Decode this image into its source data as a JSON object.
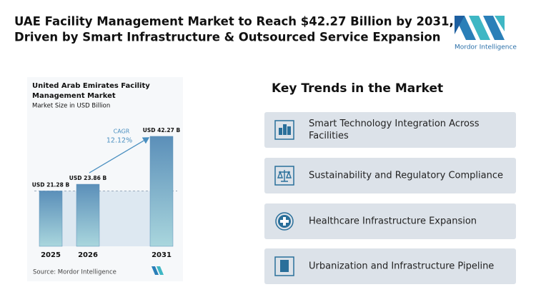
{
  "header": {
    "title": [
      "UAE Facility Management Market to Reach $42.27 Billion by 2031,",
      "Driven by Smart Infrastructure & Outsourced Service Expansion"
    ]
  },
  "logo": {
    "text": "Mordor Intelligence"
  },
  "chart_data": {
    "type": "bar",
    "title": [
      "United Arab Emirates Facility",
      "Management Market"
    ],
    "subtitle": "Market Size in USD Billion",
    "categories": [
      "2025",
      "2026",
      "2031"
    ],
    "values": [
      21.28,
      23.86,
      42.27
    ],
    "value_labels": [
      "USD 21.28 B",
      "USD 23.86 B",
      "USD 42.27 B"
    ],
    "annotation": {
      "label": "CAGR",
      "value": "12.12%"
    },
    "source": "Source: Mordor Intelligence",
    "color": "#5b8fb9",
    "ylim": [
      0,
      45
    ]
  },
  "trends": {
    "title": "Key Trends in the Market",
    "items": [
      [
        "Smart Technology Integration Across",
        "Facilities"
      ],
      [
        "Sustainability and Regulatory Compliance"
      ],
      [
        "Healthcare Infrastructure Expansion"
      ],
      [
        "Urbanization and Infrastructure Pipeline"
      ]
    ]
  }
}
